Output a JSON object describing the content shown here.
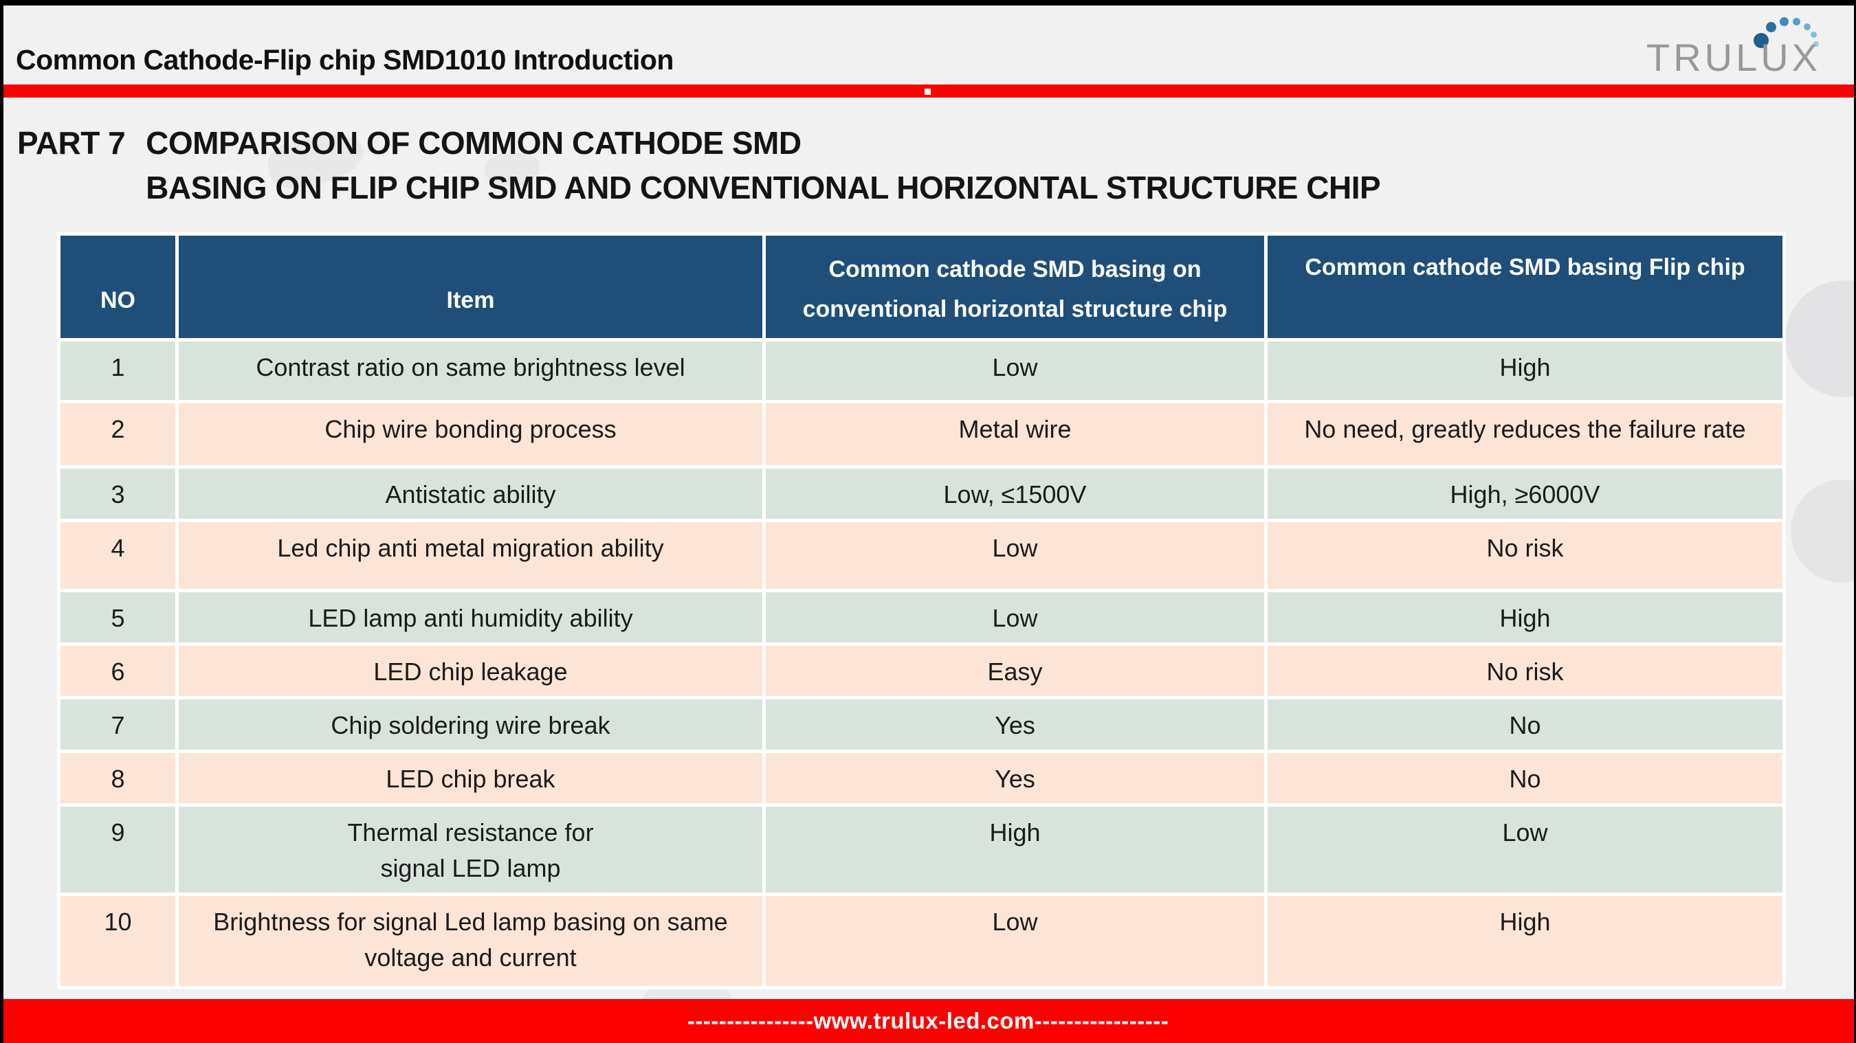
{
  "header": {
    "title": "Common Cathode-Flip chip SMD1010 Introduction",
    "logo_text": "TRULUX"
  },
  "heading": {
    "part_label": "PART 7",
    "line1": "COMPARISON OF COMMON CATHODE SMD",
    "line2": "BASING ON FLIP CHIP SMD AND CONVENTIONAL HORIZONTAL STRUCTURE CHIP"
  },
  "table": {
    "columns": {
      "no": "NO",
      "item": "Item",
      "conventional": "Common cathode SMD basing on\nconventional horizontal structure chip",
      "flip": "Common cathode SMD basing Flip chip"
    },
    "rows": [
      {
        "no": "1",
        "item": "Contrast ratio on same brightness level",
        "conventional": "Low",
        "flip": "High"
      },
      {
        "no": "2",
        "item": "Chip wire bonding process",
        "conventional": "Metal wire",
        "flip": "No need, greatly reduces the failure rate"
      },
      {
        "no": "3",
        "item": "Antistatic ability",
        "conventional": "Low, ≤1500V",
        "flip": "High, ≥6000V"
      },
      {
        "no": "4",
        "item": "Led chip anti metal migration ability",
        "conventional": "Low",
        "flip": "No risk"
      },
      {
        "no": "5",
        "item": "LED lamp anti humidity ability",
        "conventional": "Low",
        "flip": "High"
      },
      {
        "no": "6",
        "item": "LED chip leakage",
        "conventional": "Easy",
        "flip": "No risk"
      },
      {
        "no": "7",
        "item": "Chip soldering wire break",
        "conventional": "Yes",
        "flip": "No"
      },
      {
        "no": "8",
        "item": "LED chip break",
        "conventional": "Yes",
        "flip": "No"
      },
      {
        "no": "9",
        "item": "Thermal resistance for\nsignal LED lamp",
        "conventional": "High",
        "flip": "Low"
      },
      {
        "no": "10",
        "item": "Brightness for signal Led lamp basing on same\nvoltage and current",
        "conventional": "Low",
        "flip": "High"
      }
    ]
  },
  "footer": {
    "text": "----------------www.trulux-led.com-----------------"
  },
  "colors": {
    "header_blue": "#1f4e79",
    "row_green": "#d8e3dc",
    "row_peach": "#fce4d6",
    "accent_red": "#fd0100",
    "logo_gray": "#97989a",
    "logo_dot_dark_blue": "#1d5f8d",
    "logo_dot_light_blue": "#96cce6"
  }
}
